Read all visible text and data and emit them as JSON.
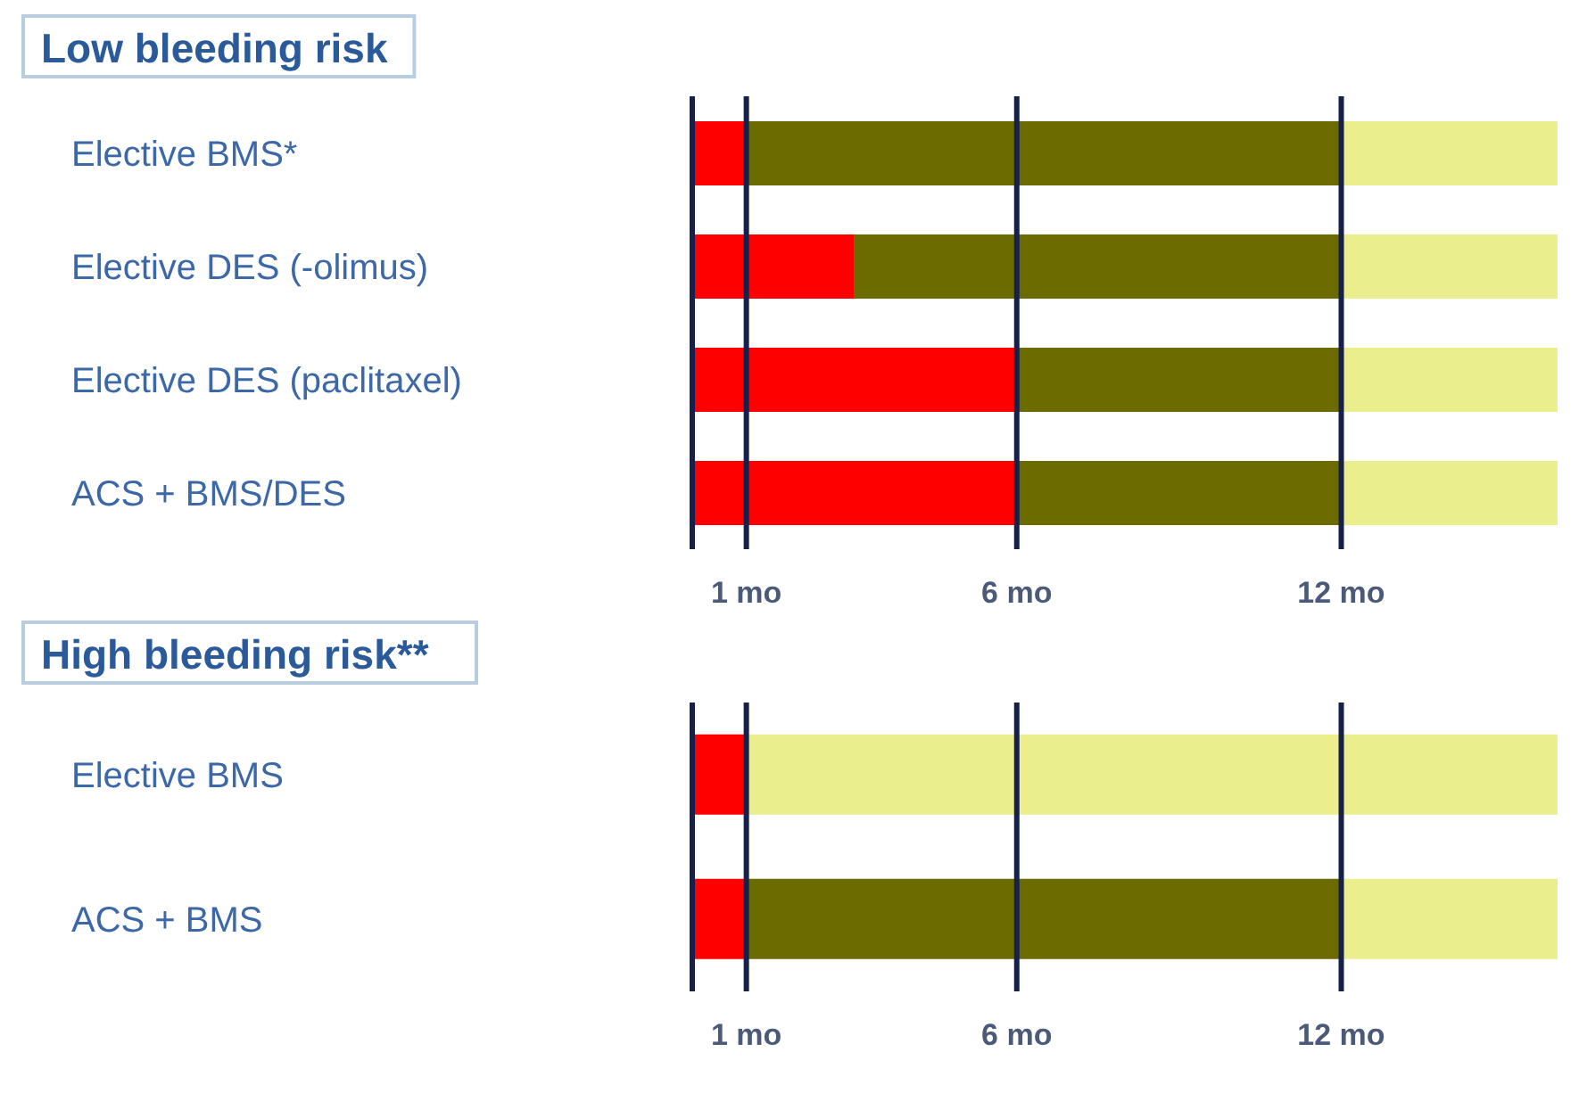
{
  "chart_data": [
    {
      "type": "bar",
      "orientation": "horizontal",
      "stacked": true,
      "annotations": [
        "Low bleeding risk"
      ],
      "categories": [
        "Elective BMS*",
        "Elective DES (-olimus)",
        "Elective DES (paclitaxel)",
        "ACS + BMS/DES"
      ],
      "series": [
        {
          "color": "#ff0000",
          "values": [
            1,
            3,
            6,
            6
          ]
        },
        {
          "color": "#6b6b00",
          "values": [
            11,
            9,
            6,
            6
          ]
        },
        {
          "color": "#eaee8c",
          "values": [
            4,
            4,
            4,
            4
          ]
        }
      ],
      "xlim": [
        0,
        16
      ],
      "xticks": [
        {
          "value": 0,
          "label": null
        },
        {
          "value": 1,
          "label": "1 mo"
        },
        {
          "value": 6,
          "label": "6 mo"
        },
        {
          "value": 12,
          "label": "12 mo"
        }
      ],
      "grid": "x",
      "tick_labels": "x"
    },
    {
      "type": "bar",
      "orientation": "horizontal",
      "stacked": true,
      "annotations": [
        "High bleeding risk**"
      ],
      "categories": [
        "Elective BMS",
        "ACS + BMS"
      ],
      "series": [
        {
          "color": "#ff0000",
          "values": [
            1,
            1
          ]
        },
        {
          "color": "#6b6b00",
          "values": [
            null,
            11
          ]
        },
        {
          "color": "#eaee8c",
          "values": [
            15,
            4
          ]
        }
      ],
      "xlim": [
        0,
        16
      ],
      "xticks": [
        {
          "value": 0,
          "label": null
        },
        {
          "value": 1,
          "label": "1 mo"
        },
        {
          "value": 6,
          "label": "6 mo"
        },
        {
          "value": 12,
          "label": "12 mo"
        }
      ],
      "grid": "x",
      "tick_labels": "x"
    }
  ]
}
